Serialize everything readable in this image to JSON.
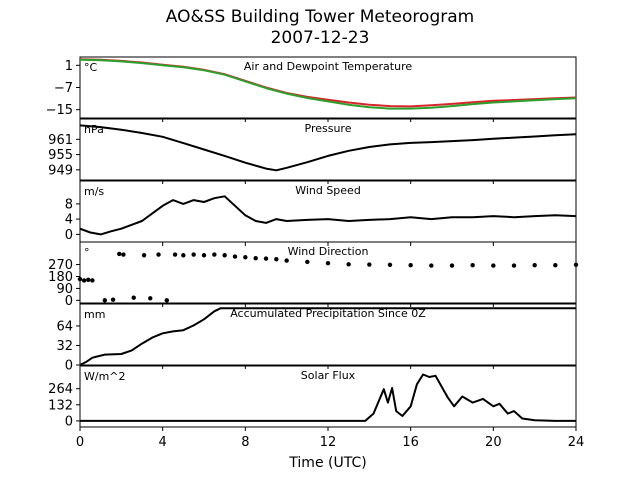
{
  "figure": {
    "title": "AO&SS Building Tower Meteorogram",
    "subtitle": "2007-12-23",
    "xlabel": "Time (UTC)",
    "xticks": [
      0,
      4,
      8,
      12,
      16,
      20,
      24
    ],
    "xlim": [
      0,
      24
    ]
  },
  "chart_data": [
    {
      "type": "line",
      "title": "Air and Dewpoint Temperature",
      "ylabel": "°C",
      "ylim": [
        -18,
        4
      ],
      "yticks": [
        1,
        -7,
        -15
      ],
      "series": [
        {
          "name": "",
          "color": "#d62728",
          "x": [
            0,
            1,
            2,
            3,
            4,
            5,
            6,
            7,
            8,
            9,
            10,
            11,
            12,
            13,
            14,
            15,
            16,
            17,
            18,
            19,
            20,
            21,
            22,
            23,
            24
          ],
          "y": [
            3.2,
            3.0,
            2.6,
            2.0,
            1.2,
            0.5,
            -0.6,
            -2.2,
            -4.6,
            -7.0,
            -9.0,
            -10.4,
            -11.4,
            -12.4,
            -13.2,
            -13.7,
            -13.8,
            -13.4,
            -12.9,
            -12.3,
            -11.8,
            -11.5,
            -11.2,
            -10.9,
            -10.6
          ]
        },
        {
          "name": "",
          "color": "#2ca02c",
          "x": [
            0,
            1,
            2,
            3,
            4,
            5,
            6,
            7,
            8,
            9,
            10,
            11,
            12,
            13,
            14,
            15,
            16,
            17,
            18,
            19,
            20,
            21,
            22,
            23,
            24
          ],
          "y": [
            3.0,
            2.8,
            2.4,
            1.8,
            1.0,
            0.3,
            -0.8,
            -2.4,
            -4.8,
            -7.2,
            -9.2,
            -10.8,
            -12.0,
            -13.2,
            -14.1,
            -14.6,
            -14.6,
            -14.3,
            -13.7,
            -13.0,
            -12.4,
            -12.0,
            -11.6,
            -11.2,
            -10.9
          ]
        }
      ]
    },
    {
      "type": "line",
      "title": "Pressure",
      "ylabel": "hPa",
      "ylim": [
        945,
        969
      ],
      "yticks": [
        961,
        955,
        949
      ],
      "series": [
        {
          "name": "",
          "color": "#000000",
          "x": [
            0,
            1,
            2,
            3,
            4,
            5,
            6,
            7,
            8,
            9,
            9.5,
            10,
            11,
            12,
            13,
            14,
            15,
            16,
            17,
            18,
            19,
            20,
            21,
            22,
            23,
            24
          ],
          "y": [
            966.5,
            965.8,
            964.8,
            963.5,
            962.0,
            959.5,
            957.0,
            954.5,
            951.8,
            949.5,
            948.8,
            949.8,
            952.0,
            954.5,
            956.5,
            958.0,
            959.0,
            959.6,
            959.9,
            960.3,
            960.7,
            961.2,
            961.7,
            962.1,
            962.6,
            963.0
          ]
        }
      ]
    },
    {
      "type": "line",
      "title": "Wind Speed",
      "ylabel": "m/s",
      "ylim": [
        -2,
        14
      ],
      "yticks": [
        8,
        4,
        0
      ],
      "series": [
        {
          "name": "",
          "color": "#000000",
          "x": [
            0,
            0.5,
            1,
            1.5,
            2,
            2.5,
            3,
            3.5,
            4,
            4.5,
            5,
            5.5,
            6,
            6.5,
            7,
            7.5,
            8,
            8.5,
            9,
            9.5,
            10,
            11,
            12,
            13,
            14,
            15,
            16,
            17,
            18,
            19,
            20,
            21,
            22,
            23,
            24
          ],
          "y": [
            1.5,
            0.5,
            0.0,
            0.8,
            1.5,
            2.5,
            3.5,
            5.5,
            7.5,
            9.0,
            8.0,
            9.0,
            8.5,
            9.5,
            10.0,
            7.5,
            5.0,
            3.5,
            3.0,
            4.0,
            3.5,
            3.8,
            4.0,
            3.5,
            3.8,
            4.0,
            4.5,
            4.0,
            4.5,
            4.5,
            4.8,
            4.5,
            4.8,
            5.0,
            4.8
          ]
        }
      ]
    },
    {
      "type": "scatter",
      "title": "Wind Direction",
      "ylabel": "°",
      "ylim": [
        -20,
        440
      ],
      "yticks": [
        270,
        180,
        90,
        0
      ],
      "series": [
        {
          "name": "",
          "color": "#000000",
          "x": [
            0,
            0.2,
            0.4,
            0.6,
            1.2,
            1.6,
            1.9,
            2.1,
            2.6,
            3.1,
            3.4,
            3.8,
            4.2,
            4.6,
            5,
            5.5,
            6,
            6.5,
            7,
            7.5,
            8,
            8.5,
            9,
            9.5,
            10,
            11,
            12,
            13,
            14,
            15,
            16,
            17,
            18,
            19,
            20,
            21,
            22,
            23,
            24
          ],
          "y": [
            160,
            150,
            155,
            150,
            0,
            5,
            350,
            345,
            20,
            340,
            15,
            345,
            0,
            345,
            340,
            345,
            340,
            345,
            340,
            330,
            325,
            318,
            315,
            310,
            300,
            290,
            280,
            272,
            270,
            268,
            265,
            262,
            262,
            265,
            262,
            262,
            265,
            265,
            268
          ]
        }
      ]
    },
    {
      "type": "line",
      "title": "Accumulated Precipitation Since 0Z",
      "ylabel": "mm",
      "ylim": [
        0,
        100
      ],
      "yticks": [
        64,
        32,
        0
      ],
      "series": [
        {
          "name": "",
          "color": "#000000",
          "x": [
            0,
            0.3,
            0.6,
            1.2,
            2.0,
            2.5,
            3.0,
            3.5,
            4.0,
            4.5,
            5.0,
            5.5,
            6.0,
            6.5,
            6.8,
            24
          ],
          "y": [
            0,
            5,
            12,
            17,
            18,
            24,
            35,
            45,
            52,
            55,
            57,
            65,
            75,
            88,
            93,
            93
          ]
        }
      ]
    },
    {
      "type": "line",
      "title": "Solar Flux",
      "ylabel": "W/m^2",
      "ylim": [
        -50,
        450
      ],
      "yticks": [
        264,
        132,
        0
      ],
      "series": [
        {
          "name": "",
          "color": "#000000",
          "x": [
            0,
            13.8,
            14.2,
            14.5,
            14.7,
            14.9,
            15.1,
            15.3,
            15.6,
            16.0,
            16.3,
            16.6,
            16.9,
            17.2,
            17.5,
            17.8,
            18.1,
            18.5,
            19.0,
            19.5,
            20.0,
            20.3,
            20.7,
            21.0,
            21.4,
            22.0,
            23.0,
            24
          ],
          "y": [
            0,
            0,
            60,
            180,
            260,
            150,
            270,
            80,
            40,
            120,
            300,
            380,
            360,
            370,
            280,
            190,
            120,
            200,
            150,
            180,
            120,
            140,
            60,
            80,
            20,
            5,
            0,
            0
          ]
        }
      ]
    }
  ]
}
